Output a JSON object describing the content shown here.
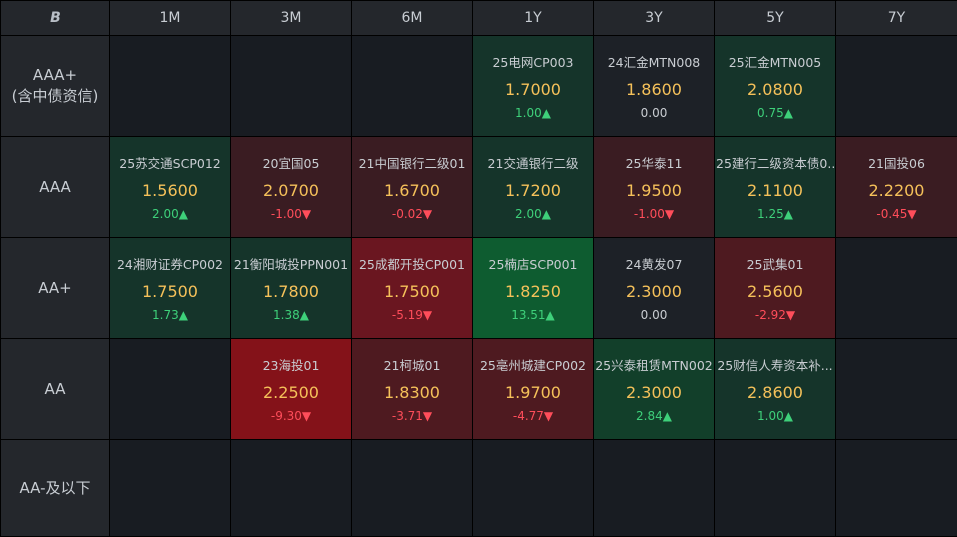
{
  "header": {
    "logo": "B",
    "tenors": [
      "1M",
      "3M",
      "6M",
      "1Y",
      "3Y",
      "5Y",
      "7Y"
    ]
  },
  "rows": [
    {
      "label_line1": "AAA+",
      "label_line2": "(含中债资信)"
    },
    {
      "label_line1": "AAA",
      "label_line2": ""
    },
    {
      "label_line1": "AA+",
      "label_line2": ""
    },
    {
      "label_line1": "AA",
      "label_line2": ""
    },
    {
      "label_line1": "AA-及以下",
      "label_line2": ""
    }
  ],
  "cells": {
    "aaap_1y": {
      "bond": "25电网CP003",
      "yield": "1.7000",
      "change": "1.00▲"
    },
    "aaap_3y": {
      "bond": "24汇金MTN008",
      "yield": "1.8600",
      "change": "0.00"
    },
    "aaap_5y": {
      "bond": "25汇金MTN005",
      "yield": "2.0800",
      "change": "0.75▲"
    },
    "aaa_1m": {
      "bond": "25苏交通SCP012",
      "yield": "1.5600",
      "change": "2.00▲"
    },
    "aaa_3m": {
      "bond": "20宜国05",
      "yield": "2.0700",
      "change": "-1.00▼"
    },
    "aaa_6m": {
      "bond": "21中国银行二级01",
      "yield": "1.6700",
      "change": "-0.02▼"
    },
    "aaa_1y": {
      "bond": "21交通银行二级",
      "yield": "1.7200",
      "change": "2.00▲"
    },
    "aaa_3y": {
      "bond": "25华泰11",
      "yield": "1.9500",
      "change": "-1.00▼"
    },
    "aaa_5y": {
      "bond": "25建行二级资本债0...",
      "yield": "2.1100",
      "change": "1.25▲"
    },
    "aaa_7y": {
      "bond": "21国投06",
      "yield": "2.2200",
      "change": "-0.45▼"
    },
    "aap_1m": {
      "bond": "24湘财证券CP002",
      "yield": "1.7500",
      "change": "1.73▲"
    },
    "aap_3m": {
      "bond": "21衡阳城投PPN001",
      "yield": "1.7800",
      "change": "1.38▲"
    },
    "aap_6m": {
      "bond": "25成都开投CP001",
      "yield": "1.7500",
      "change": "-5.19▼"
    },
    "aap_1y": {
      "bond": "25楠店SCP001",
      "yield": "1.8250",
      "change": "13.51▲"
    },
    "aap_3y": {
      "bond": "24黄发07",
      "yield": "2.3000",
      "change": "0.00"
    },
    "aap_5y": {
      "bond": "25武集01",
      "yield": "2.5600",
      "change": "-2.92▼"
    },
    "aa_3m": {
      "bond": "23海投01",
      "yield": "2.2500",
      "change": "-9.30▼"
    },
    "aa_6m": {
      "bond": "21柯城01",
      "yield": "1.8300",
      "change": "-3.71▼"
    },
    "aa_1y": {
      "bond": "25亳州城建CP002",
      "yield": "1.9700",
      "change": "-4.77▼"
    },
    "aa_3y": {
      "bond": "25兴泰租赁MTN002",
      "yield": "2.3000",
      "change": "2.84▲"
    },
    "aa_5y": {
      "bond": "25财信人寿资本补...",
      "yield": "2.8600",
      "change": "1.00▲"
    }
  }
}
